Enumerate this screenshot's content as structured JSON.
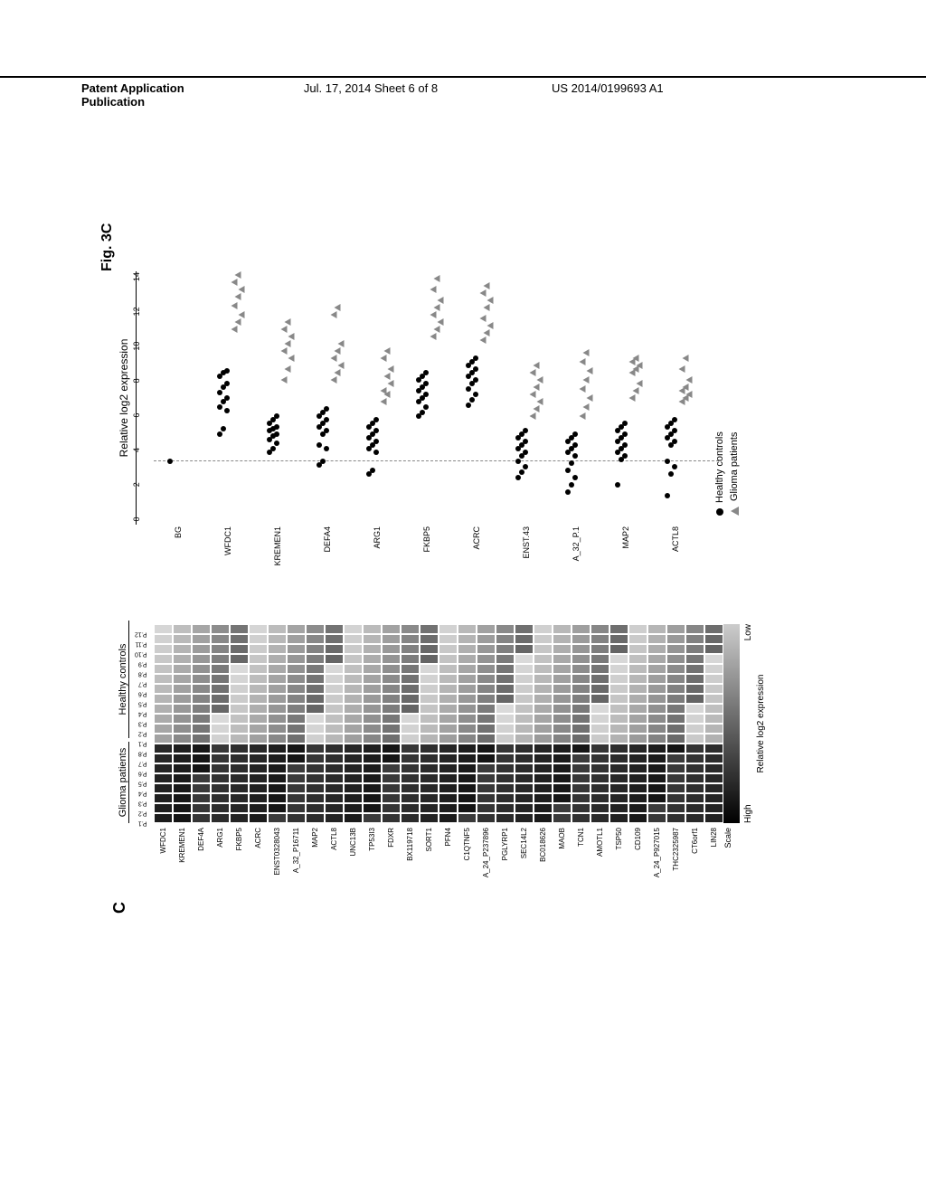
{
  "header": {
    "left": "Patent Application Publication",
    "mid": "Jul. 17, 2014  Sheet 6 of 8",
    "right": "US 2014/0199693 A1"
  },
  "figure_label": "Fig. 3C",
  "panel_label": "C",
  "heatmap": {
    "group_labels": [
      "Glioma patients",
      "Healthy controls"
    ],
    "columns": [
      "P.1",
      "P.2",
      "P.3",
      "P.4",
      "P.5",
      "P.6",
      "P.7",
      "P.8",
      "P.1",
      "P.2",
      "P.3",
      "P.4",
      "P.5",
      "P.6",
      "P.7",
      "P.8",
      "P.9",
      "P.10",
      "P.11",
      "P.12"
    ],
    "genes": [
      "WFDC1",
      "KREMEN1",
      "DEF4A",
      "ARG1",
      "FKBP5",
      "ACRC",
      "ENST0328043",
      "A_32_P16711",
      "MAP2",
      "ACTL8",
      "UNC13B",
      "TP53I3",
      "FDXR",
      "BX119718",
      "SORT1",
      "PFN4",
      "C1QTNF5",
      "A_24_P237896",
      "PGLYRP1",
      "SEC14L2",
      "BC018626",
      "MAOB",
      "TCN1",
      "AMOTL1",
      "TSP50",
      "CD109",
      "A_24_P927015",
      "THC2325987",
      "CT6orf1",
      "LIN28"
    ],
    "scale_label": "Scale",
    "scale_high": "High",
    "scale_low": "Low",
    "scale_caption": "Relative log2 expression",
    "glioma_cols": 8,
    "healthy_cols": 12,
    "cell_border": "#ffffff"
  },
  "dotplot": {
    "title": "Relative log2 expression",
    "xmin": 0,
    "xmax": 14,
    "ticks": [
      0,
      2,
      4,
      6,
      8,
      10,
      12,
      14
    ],
    "threshold": 3.5,
    "rows": [
      {
        "label": "BG",
        "healthy": [
          3.5
        ],
        "glioma": []
      },
      {
        "label": "WFDC1",
        "healthy": [
          5.0,
          5.3,
          6.3,
          6.5,
          6.8,
          7.0,
          7.3,
          7.6,
          7.8,
          8.2,
          8.4,
          8.5
        ],
        "glioma": [
          10.8,
          11.2,
          11.6,
          12.1,
          12.6,
          13.0,
          13.4,
          13.8
        ]
      },
      {
        "label": "KREMEN1",
        "healthy": [
          4.0,
          4.2,
          4.5,
          4.7,
          4.9,
          5.0,
          5.2,
          5.3,
          5.4,
          5.6,
          5.8,
          6.0
        ],
        "glioma": [
          8.0,
          8.6,
          9.2,
          9.6,
          10.0,
          10.4,
          10.8,
          11.2
        ]
      },
      {
        "label": "DEFA4",
        "healthy": [
          3.3,
          3.5,
          4.2,
          4.4,
          5.0,
          5.2,
          5.4,
          5.6,
          5.8,
          6.0,
          6.2,
          6.4
        ],
        "glioma": [
          8.0,
          8.4,
          8.8,
          9.2,
          9.6,
          10.0,
          11.6,
          12.0
        ]
      },
      {
        "label": "ARG1",
        "healthy": [
          2.8,
          3.0,
          4.0,
          4.2,
          4.4,
          4.6,
          4.8,
          5.0,
          5.2,
          5.4,
          5.6,
          5.8
        ],
        "glioma": [
          6.8,
          7.2,
          7.8,
          7.4,
          8.2,
          8.6,
          9.2,
          9.6
        ]
      },
      {
        "label": "FKBP5",
        "healthy": [
          6.0,
          6.2,
          6.5,
          6.8,
          7.0,
          7.2,
          7.4,
          7.6,
          7.8,
          8.0,
          8.2,
          8.4
        ],
        "glioma": [
          10.4,
          10.8,
          11.2,
          11.6,
          12.0,
          12.4,
          13.0,
          13.6
        ]
      },
      {
        "label": "ACRC",
        "healthy": [
          6.6,
          6.9,
          7.2,
          7.5,
          7.8,
          8.0,
          8.2,
          8.4,
          8.6,
          8.8,
          9.0,
          9.2
        ],
        "glioma": [
          10.2,
          10.6,
          11.0,
          11.4,
          12.0,
          12.4,
          12.8,
          13.2
        ]
      },
      {
        "label": "ENST.43",
        "healthy": [
          2.6,
          2.9,
          3.2,
          3.5,
          3.8,
          4.0,
          4.2,
          4.4,
          4.6,
          4.8,
          5.0,
          5.2
        ],
        "glioma": [
          6.0,
          6.4,
          6.8,
          7.2,
          7.6,
          8.0,
          8.4,
          8.8
        ]
      },
      {
        "label": "A_32_P.1",
        "healthy": [
          1.8,
          2.2,
          2.6,
          3.0,
          3.4,
          3.8,
          4.0,
          4.2,
          4.4,
          4.6,
          4.8,
          5.0
        ],
        "glioma": [
          6.0,
          6.5,
          7.0,
          7.5,
          8.0,
          8.5,
          9.0,
          9.5
        ]
      },
      {
        "label": "MAP2",
        "healthy": [
          2.2,
          3.6,
          3.8,
          4.0,
          4.2,
          4.4,
          4.6,
          4.8,
          5.0,
          5.2,
          5.4,
          5.6
        ],
        "glioma": [
          7.0,
          7.4,
          7.8,
          8.4,
          8.6,
          8.8,
          9.0,
          9.2
        ]
      },
      {
        "label": "ACTL8",
        "healthy": [
          1.6,
          2.8,
          3.2,
          3.5,
          4.4,
          4.6,
          4.8,
          5.0,
          5.2,
          5.4,
          5.6,
          5.8
        ],
        "glioma": [
          6.8,
          7.0,
          7.2,
          7.4,
          7.6,
          8.0,
          8.6,
          9.2
        ]
      }
    ],
    "legend": {
      "healthy": "Healthy controls",
      "glioma": "Glioma patients"
    },
    "colors": {
      "healthy": "#000000",
      "glioma": "#888888"
    }
  }
}
